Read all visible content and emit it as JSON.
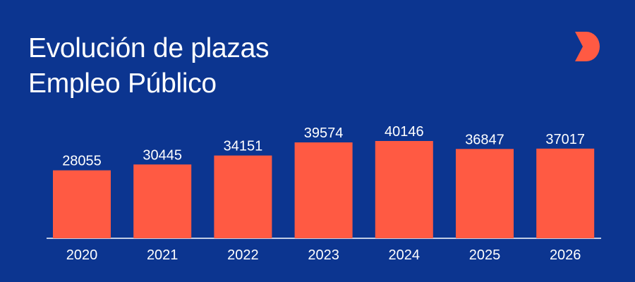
{
  "header": {
    "title_line1": "Evolución de plazas",
    "title_line2": "Empleo Público"
  },
  "logo": {
    "icon": "brand-logo-icon",
    "color": "#ff5a43"
  },
  "colors": {
    "background": "#0c3590",
    "bar": "#ff5a43",
    "text": "#ffffff",
    "axis": "#ffffff"
  },
  "chart_data": {
    "type": "bar",
    "categories": [
      "2020",
      "2021",
      "2022",
      "2023",
      "2024",
      "2025",
      "2026"
    ],
    "values": [
      28055,
      30445,
      34151,
      39574,
      40146,
      36847,
      37017
    ],
    "title": "Evolución de plazas Empleo Público",
    "xlabel": "",
    "ylabel": "",
    "ylim": [
      0,
      40146
    ],
    "grid": false,
    "legend": "none"
  }
}
